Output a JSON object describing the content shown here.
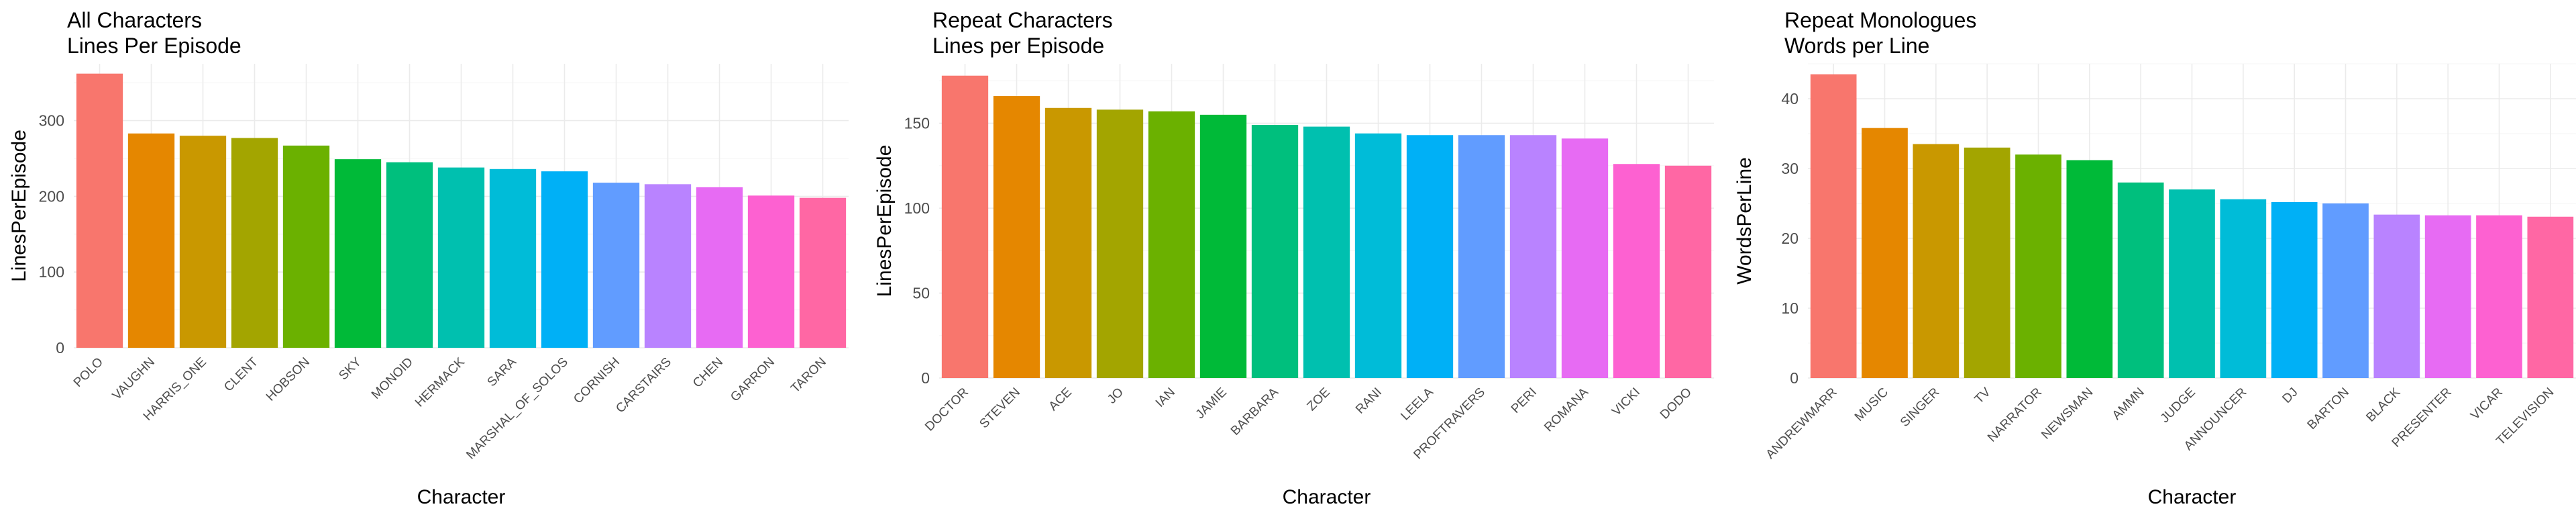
{
  "chart_data": [
    {
      "type": "bar",
      "title": "All Characters",
      "subtitle": "Lines Per Episode",
      "xlabel": "Character",
      "ylabel": "LinesPerEpisode",
      "ylim": [
        0,
        375
      ],
      "yticks": [
        0,
        100,
        200,
        300
      ],
      "grid": true,
      "legend": "none",
      "categories": [
        "POLO",
        "VAUGHN",
        "HARRIS_ONE",
        "CLENT",
        "HOBSON",
        "SKY",
        "MONOID",
        "HERMACK",
        "SARA",
        "MARSHAL_OF_SOLOS",
        "CORNISH",
        "CARSTAIRS",
        "CHEN",
        "GARRON",
        "TARON"
      ],
      "values": [
        362,
        283,
        280,
        277,
        267,
        249,
        245,
        238,
        236,
        233,
        218,
        216,
        212,
        201,
        198
      ],
      "colors": [
        "#F8766D",
        "#E58700",
        "#C99800",
        "#A3A500",
        "#6BB100",
        "#00BA38",
        "#00BF7D",
        "#00C0AF",
        "#00BCD8",
        "#00B0F6",
        "#619CFF",
        "#B983FF",
        "#E76BF3",
        "#FD61D1",
        "#FF67A4"
      ]
    },
    {
      "type": "bar",
      "title": "Repeat Characters",
      "subtitle": "Lines per Episode",
      "xlabel": "Character",
      "ylabel": "LinesPerEpisode",
      "ylim": [
        0,
        185
      ],
      "yticks": [
        0,
        50,
        100,
        150
      ],
      "grid": true,
      "legend": "none",
      "categories": [
        "DOCTOR",
        "STEVEN",
        "ACE",
        "JO",
        "IAN",
        "JAMIE",
        "BARBARA",
        "ZOE",
        "RANI",
        "LEELA",
        "PROFTRAVERS",
        "PERI",
        "ROMANA",
        "VICKI",
        "DODO"
      ],
      "values": [
        178,
        166,
        159,
        158,
        157,
        155,
        149,
        148,
        144,
        143,
        143,
        143,
        141,
        126,
        125
      ],
      "colors": [
        "#F8766D",
        "#E58700",
        "#C99800",
        "#A3A500",
        "#6BB100",
        "#00BA38",
        "#00BF7D",
        "#00C0AF",
        "#00BCD8",
        "#00B0F6",
        "#619CFF",
        "#B983FF",
        "#E76BF3",
        "#FD61D1",
        "#FF67A4"
      ]
    },
    {
      "type": "bar",
      "title": "Repeat Monologues",
      "subtitle": "Words per Line",
      "xlabel": "Character",
      "ylabel": "WordsPerLine",
      "ylim": [
        0,
        45
      ],
      "yticks": [
        0,
        10,
        20,
        30,
        40
      ],
      "grid": true,
      "legend": "none",
      "categories": [
        "ANDREWMARR",
        "MUSIC",
        "SINGER",
        "TV",
        "NARRATOR",
        "NEWSMAN",
        "AMMN",
        "JUDGE",
        "ANNOUNCER",
        "DJ",
        "BARTON",
        "BLACK",
        "PRESENTER",
        "VICAR",
        "TELEVISION"
      ],
      "values": [
        43.5,
        35.8,
        33.5,
        33.0,
        32.0,
        31.2,
        28.0,
        27.0,
        25.6,
        25.2,
        25.0,
        23.4,
        23.3,
        23.3,
        23.1
      ],
      "colors": [
        "#F8766D",
        "#E58700",
        "#C99800",
        "#A3A500",
        "#6BB100",
        "#00BA38",
        "#00BF7D",
        "#00C0AF",
        "#00BCD8",
        "#00B0F6",
        "#619CFF",
        "#B983FF",
        "#E76BF3",
        "#FD61D1",
        "#FF67A4"
      ]
    }
  ]
}
